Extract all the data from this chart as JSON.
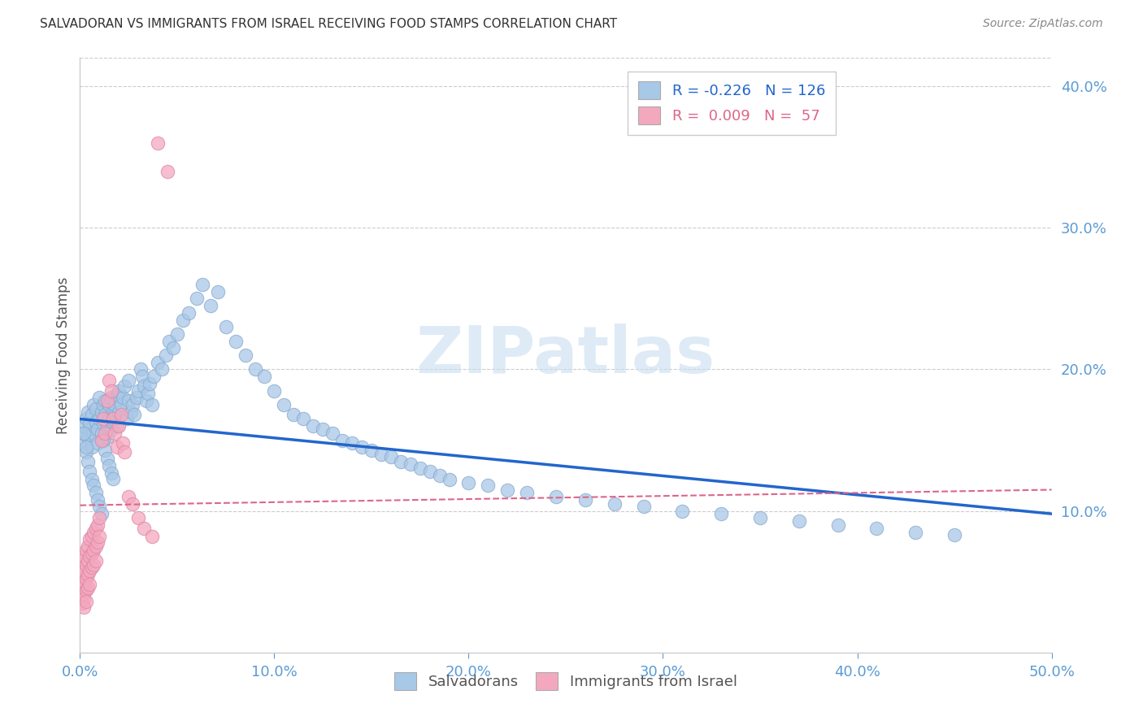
{
  "title": "SALVADORAN VS IMMIGRANTS FROM ISRAEL RECEIVING FOOD STAMPS CORRELATION CHART",
  "source": "Source: ZipAtlas.com",
  "ylabel": "Receiving Food Stamps",
  "xlim": [
    0.0,
    0.5
  ],
  "ylim": [
    0.0,
    0.42
  ],
  "blue_color": "#a8c8e8",
  "pink_color": "#f4a8be",
  "blue_line_color": "#2266cc",
  "pink_line_color": "#dd6688",
  "legend_blue_R": "-0.226",
  "legend_blue_N": "126",
  "legend_pink_R": "0.009",
  "legend_pink_N": "57",
  "watermark": "ZIPatlas",
  "label_color": "#5b9bd5",
  "grid_color": "#cccccc",
  "background_color": "#ffffff",
  "blue_scatter_x": [
    0.001,
    0.002,
    0.002,
    0.003,
    0.003,
    0.004,
    0.004,
    0.005,
    0.005,
    0.006,
    0.006,
    0.007,
    0.007,
    0.008,
    0.008,
    0.009,
    0.009,
    0.01,
    0.01,
    0.011,
    0.011,
    0.012,
    0.012,
    0.013,
    0.013,
    0.014,
    0.014,
    0.015,
    0.015,
    0.016,
    0.016,
    0.017,
    0.017,
    0.018,
    0.018,
    0.019,
    0.019,
    0.02,
    0.02,
    0.021,
    0.022,
    0.023,
    0.024,
    0.025,
    0.025,
    0.026,
    0.027,
    0.028,
    0.029,
    0.03,
    0.031,
    0.032,
    0.033,
    0.034,
    0.035,
    0.036,
    0.037,
    0.038,
    0.04,
    0.042,
    0.044,
    0.046,
    0.048,
    0.05,
    0.053,
    0.056,
    0.06,
    0.063,
    0.067,
    0.071,
    0.075,
    0.08,
    0.085,
    0.09,
    0.095,
    0.1,
    0.105,
    0.11,
    0.115,
    0.12,
    0.125,
    0.13,
    0.135,
    0.14,
    0.145,
    0.15,
    0.155,
    0.16,
    0.165,
    0.17,
    0.175,
    0.18,
    0.185,
    0.19,
    0.2,
    0.21,
    0.22,
    0.23,
    0.245,
    0.26,
    0.275,
    0.29,
    0.31,
    0.33,
    0.35,
    0.37,
    0.39,
    0.41,
    0.43,
    0.45,
    0.002,
    0.003,
    0.004,
    0.005,
    0.006,
    0.007,
    0.008,
    0.009,
    0.01,
    0.011,
    0.012,
    0.013,
    0.014,
    0.015,
    0.016,
    0.017
  ],
  "blue_scatter_y": [
    0.155,
    0.16,
    0.148,
    0.165,
    0.142,
    0.17,
    0.152,
    0.158,
    0.162,
    0.168,
    0.145,
    0.175,
    0.155,
    0.163,
    0.172,
    0.148,
    0.158,
    0.18,
    0.165,
    0.17,
    0.155,
    0.175,
    0.162,
    0.168,
    0.178,
    0.152,
    0.16,
    0.165,
    0.175,
    0.18,
    0.158,
    0.163,
    0.17,
    0.168,
    0.175,
    0.182,
    0.16,
    0.185,
    0.17,
    0.175,
    0.18,
    0.188,
    0.165,
    0.178,
    0.192,
    0.17,
    0.175,
    0.168,
    0.18,
    0.185,
    0.2,
    0.195,
    0.188,
    0.178,
    0.183,
    0.19,
    0.175,
    0.195,
    0.205,
    0.2,
    0.21,
    0.22,
    0.215,
    0.225,
    0.235,
    0.24,
    0.25,
    0.26,
    0.245,
    0.255,
    0.23,
    0.22,
    0.21,
    0.2,
    0.195,
    0.185,
    0.175,
    0.168,
    0.165,
    0.16,
    0.158,
    0.155,
    0.15,
    0.148,
    0.145,
    0.143,
    0.14,
    0.138,
    0.135,
    0.133,
    0.13,
    0.128,
    0.125,
    0.122,
    0.12,
    0.118,
    0.115,
    0.113,
    0.11,
    0.108,
    0.105,
    0.103,
    0.1,
    0.098,
    0.095,
    0.093,
    0.09,
    0.088,
    0.085,
    0.083,
    0.155,
    0.145,
    0.135,
    0.128,
    0.122,
    0.118,
    0.113,
    0.108,
    0.103,
    0.098,
    0.15,
    0.143,
    0.137,
    0.132,
    0.127,
    0.123
  ],
  "pink_scatter_x": [
    0.001,
    0.001,
    0.001,
    0.001,
    0.001,
    0.002,
    0.002,
    0.002,
    0.002,
    0.002,
    0.002,
    0.003,
    0.003,
    0.003,
    0.003,
    0.003,
    0.004,
    0.004,
    0.004,
    0.004,
    0.005,
    0.005,
    0.005,
    0.005,
    0.006,
    0.006,
    0.006,
    0.007,
    0.007,
    0.007,
    0.008,
    0.008,
    0.008,
    0.009,
    0.009,
    0.01,
    0.01,
    0.011,
    0.012,
    0.013,
    0.014,
    0.015,
    0.016,
    0.017,
    0.018,
    0.019,
    0.02,
    0.021,
    0.022,
    0.023,
    0.025,
    0.027,
    0.03,
    0.033,
    0.037,
    0.04,
    0.045
  ],
  "pink_scatter_y": [
    0.065,
    0.055,
    0.045,
    0.04,
    0.035,
    0.068,
    0.058,
    0.048,
    0.042,
    0.038,
    0.032,
    0.072,
    0.062,
    0.052,
    0.044,
    0.036,
    0.075,
    0.065,
    0.055,
    0.046,
    0.08,
    0.068,
    0.058,
    0.048,
    0.082,
    0.07,
    0.06,
    0.085,
    0.072,
    0.062,
    0.088,
    0.075,
    0.065,
    0.09,
    0.078,
    0.095,
    0.082,
    0.15,
    0.165,
    0.155,
    0.178,
    0.192,
    0.185,
    0.165,
    0.155,
    0.145,
    0.16,
    0.168,
    0.148,
    0.142,
    0.11,
    0.105,
    0.095,
    0.088,
    0.082,
    0.36,
    0.34
  ],
  "blue_line_start_y": 0.165,
  "blue_line_end_y": 0.098,
  "pink_line_start_y": 0.104,
  "pink_line_end_y": 0.115
}
